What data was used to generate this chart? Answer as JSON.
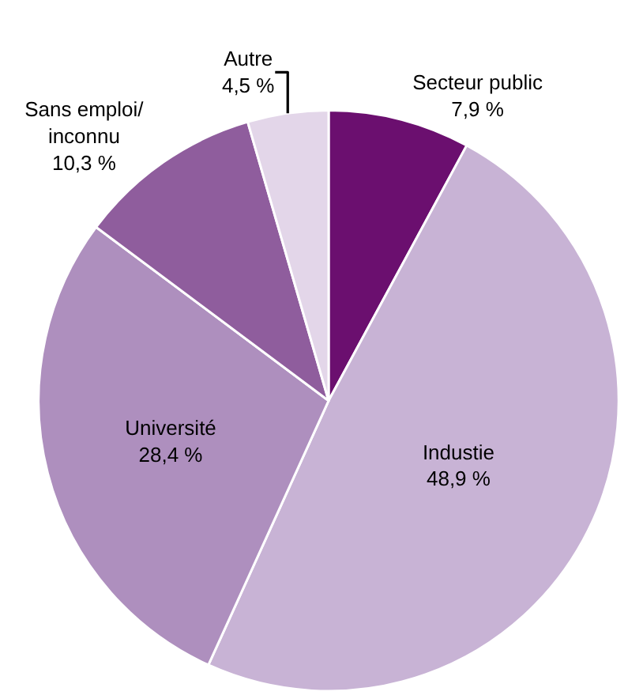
{
  "chart_data": {
    "type": "pie",
    "categories": [
      "Secteur public",
      "Industie",
      "Université",
      "Sans emploi/\ninconnu",
      "Autre"
    ],
    "values": [
      7.9,
      48.9,
      28.4,
      10.3,
      4.5
    ],
    "value_labels": [
      "7,9 %",
      "48,9 %",
      "28,4 %",
      "10,3 %",
      "4,5 %"
    ],
    "colors": [
      "#6b0f6f",
      "#c8b3d5",
      "#ae8fbe",
      "#8f5d9d",
      "#e3d6e9"
    ],
    "legend": false
  }
}
